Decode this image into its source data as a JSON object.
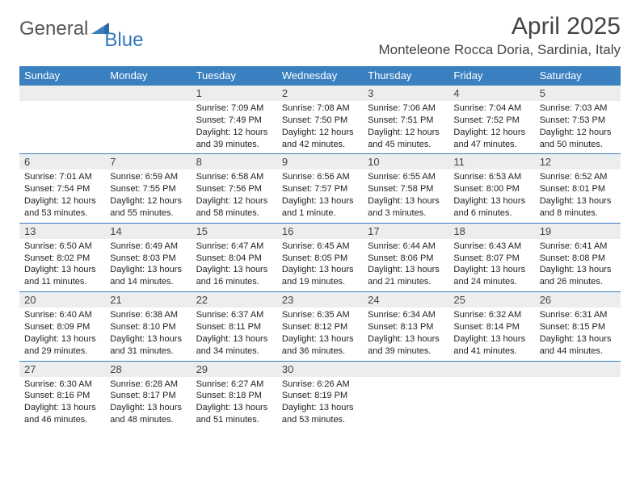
{
  "brand": {
    "part1": "General",
    "part2": "Blue"
  },
  "title": "April 2025",
  "location": "Monteleone Rocca Doria, Sardinia, Italy",
  "colors": {
    "header_bg": "#3a80c0",
    "header_fg": "#ffffff",
    "daynum_bg": "#eceeee",
    "rule": "#3a80c0",
    "text": "#222222",
    "logo_gray": "#555555",
    "logo_blue": "#3178b8"
  },
  "typography": {
    "title_fontsize": 30,
    "location_fontsize": 17,
    "dayhead_fontsize": 13,
    "daynum_fontsize": 13,
    "body_fontsize": 11
  },
  "calendar": {
    "day_headers": [
      "Sunday",
      "Monday",
      "Tuesday",
      "Wednesday",
      "Thursday",
      "Friday",
      "Saturday"
    ],
    "weeks": [
      [
        {
          "empty": true
        },
        {
          "empty": true
        },
        {
          "n": "1",
          "sunrise": "Sunrise: 7:09 AM",
          "sunset": "Sunset: 7:49 PM",
          "day1": "Daylight: 12 hours",
          "day2": "and 39 minutes."
        },
        {
          "n": "2",
          "sunrise": "Sunrise: 7:08 AM",
          "sunset": "Sunset: 7:50 PM",
          "day1": "Daylight: 12 hours",
          "day2": "and 42 minutes."
        },
        {
          "n": "3",
          "sunrise": "Sunrise: 7:06 AM",
          "sunset": "Sunset: 7:51 PM",
          "day1": "Daylight: 12 hours",
          "day2": "and 45 minutes."
        },
        {
          "n": "4",
          "sunrise": "Sunrise: 7:04 AM",
          "sunset": "Sunset: 7:52 PM",
          "day1": "Daylight: 12 hours",
          "day2": "and 47 minutes."
        },
        {
          "n": "5",
          "sunrise": "Sunrise: 7:03 AM",
          "sunset": "Sunset: 7:53 PM",
          "day1": "Daylight: 12 hours",
          "day2": "and 50 minutes."
        }
      ],
      [
        {
          "n": "6",
          "sunrise": "Sunrise: 7:01 AM",
          "sunset": "Sunset: 7:54 PM",
          "day1": "Daylight: 12 hours",
          "day2": "and 53 minutes."
        },
        {
          "n": "7",
          "sunrise": "Sunrise: 6:59 AM",
          "sunset": "Sunset: 7:55 PM",
          "day1": "Daylight: 12 hours",
          "day2": "and 55 minutes."
        },
        {
          "n": "8",
          "sunrise": "Sunrise: 6:58 AM",
          "sunset": "Sunset: 7:56 PM",
          "day1": "Daylight: 12 hours",
          "day2": "and 58 minutes."
        },
        {
          "n": "9",
          "sunrise": "Sunrise: 6:56 AM",
          "sunset": "Sunset: 7:57 PM",
          "day1": "Daylight: 13 hours",
          "day2": "and 1 minute."
        },
        {
          "n": "10",
          "sunrise": "Sunrise: 6:55 AM",
          "sunset": "Sunset: 7:58 PM",
          "day1": "Daylight: 13 hours",
          "day2": "and 3 minutes."
        },
        {
          "n": "11",
          "sunrise": "Sunrise: 6:53 AM",
          "sunset": "Sunset: 8:00 PM",
          "day1": "Daylight: 13 hours",
          "day2": "and 6 minutes."
        },
        {
          "n": "12",
          "sunrise": "Sunrise: 6:52 AM",
          "sunset": "Sunset: 8:01 PM",
          "day1": "Daylight: 13 hours",
          "day2": "and 8 minutes."
        }
      ],
      [
        {
          "n": "13",
          "sunrise": "Sunrise: 6:50 AM",
          "sunset": "Sunset: 8:02 PM",
          "day1": "Daylight: 13 hours",
          "day2": "and 11 minutes."
        },
        {
          "n": "14",
          "sunrise": "Sunrise: 6:49 AM",
          "sunset": "Sunset: 8:03 PM",
          "day1": "Daylight: 13 hours",
          "day2": "and 14 minutes."
        },
        {
          "n": "15",
          "sunrise": "Sunrise: 6:47 AM",
          "sunset": "Sunset: 8:04 PM",
          "day1": "Daylight: 13 hours",
          "day2": "and 16 minutes."
        },
        {
          "n": "16",
          "sunrise": "Sunrise: 6:45 AM",
          "sunset": "Sunset: 8:05 PM",
          "day1": "Daylight: 13 hours",
          "day2": "and 19 minutes."
        },
        {
          "n": "17",
          "sunrise": "Sunrise: 6:44 AM",
          "sunset": "Sunset: 8:06 PM",
          "day1": "Daylight: 13 hours",
          "day2": "and 21 minutes."
        },
        {
          "n": "18",
          "sunrise": "Sunrise: 6:43 AM",
          "sunset": "Sunset: 8:07 PM",
          "day1": "Daylight: 13 hours",
          "day2": "and 24 minutes."
        },
        {
          "n": "19",
          "sunrise": "Sunrise: 6:41 AM",
          "sunset": "Sunset: 8:08 PM",
          "day1": "Daylight: 13 hours",
          "day2": "and 26 minutes."
        }
      ],
      [
        {
          "n": "20",
          "sunrise": "Sunrise: 6:40 AM",
          "sunset": "Sunset: 8:09 PM",
          "day1": "Daylight: 13 hours",
          "day2": "and 29 minutes."
        },
        {
          "n": "21",
          "sunrise": "Sunrise: 6:38 AM",
          "sunset": "Sunset: 8:10 PM",
          "day1": "Daylight: 13 hours",
          "day2": "and 31 minutes."
        },
        {
          "n": "22",
          "sunrise": "Sunrise: 6:37 AM",
          "sunset": "Sunset: 8:11 PM",
          "day1": "Daylight: 13 hours",
          "day2": "and 34 minutes."
        },
        {
          "n": "23",
          "sunrise": "Sunrise: 6:35 AM",
          "sunset": "Sunset: 8:12 PM",
          "day1": "Daylight: 13 hours",
          "day2": "and 36 minutes."
        },
        {
          "n": "24",
          "sunrise": "Sunrise: 6:34 AM",
          "sunset": "Sunset: 8:13 PM",
          "day1": "Daylight: 13 hours",
          "day2": "and 39 minutes."
        },
        {
          "n": "25",
          "sunrise": "Sunrise: 6:32 AM",
          "sunset": "Sunset: 8:14 PM",
          "day1": "Daylight: 13 hours",
          "day2": "and 41 minutes."
        },
        {
          "n": "26",
          "sunrise": "Sunrise: 6:31 AM",
          "sunset": "Sunset: 8:15 PM",
          "day1": "Daylight: 13 hours",
          "day2": "and 44 minutes."
        }
      ],
      [
        {
          "n": "27",
          "sunrise": "Sunrise: 6:30 AM",
          "sunset": "Sunset: 8:16 PM",
          "day1": "Daylight: 13 hours",
          "day2": "and 46 minutes."
        },
        {
          "n": "28",
          "sunrise": "Sunrise: 6:28 AM",
          "sunset": "Sunset: 8:17 PM",
          "day1": "Daylight: 13 hours",
          "day2": "and 48 minutes."
        },
        {
          "n": "29",
          "sunrise": "Sunrise: 6:27 AM",
          "sunset": "Sunset: 8:18 PM",
          "day1": "Daylight: 13 hours",
          "day2": "and 51 minutes."
        },
        {
          "n": "30",
          "sunrise": "Sunrise: 6:26 AM",
          "sunset": "Sunset: 8:19 PM",
          "day1": "Daylight: 13 hours",
          "day2": "and 53 minutes."
        },
        {
          "empty": true
        },
        {
          "empty": true
        },
        {
          "empty": true
        }
      ]
    ]
  }
}
